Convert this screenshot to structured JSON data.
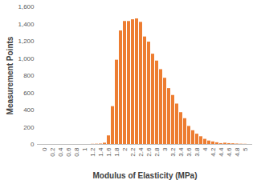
{
  "chart_data": {
    "type": "bar",
    "x_label": "Modulus of Elasticity (MPa)",
    "y_label": "Measurement Points",
    "categories": [
      "0",
      null,
      "0.2",
      null,
      "0.4",
      null,
      "0.6",
      null,
      "0.8",
      null,
      "1",
      null,
      "1.2",
      null,
      "1.4",
      null,
      "1.6",
      null,
      "1.8",
      null,
      "2",
      null,
      "2.2",
      null,
      "2.4",
      null,
      "2.6",
      null,
      "2.8",
      null,
      "3",
      null,
      "3.2",
      null,
      "3.4",
      null,
      "3.6",
      null,
      "3.8",
      null,
      "4",
      null,
      "4.2",
      null,
      "4.4",
      null,
      "4.6",
      null,
      "4.8",
      null,
      "5"
    ],
    "values": [
      0,
      0,
      0,
      0,
      0,
      0,
      0,
      0,
      0,
      0,
      0,
      0,
      2,
      3,
      5,
      15,
      100,
      440,
      980,
      1320,
      1430,
      1430,
      1450,
      1460,
      1420,
      1250,
      1190,
      1050,
      970,
      870,
      770,
      650,
      570,
      470,
      370,
      300,
      210,
      160,
      120,
      90,
      60,
      40,
      30,
      20,
      10,
      15,
      10,
      8,
      5,
      3,
      2
    ],
    "color": "#ed7d31",
    "ylim": [
      0,
      1600
    ],
    "yticks": [
      0,
      200,
      400,
      600,
      800,
      {
        "value": 1000,
        "label": "1,000"
      },
      {
        "value": 1200,
        "label": "1,200"
      },
      {
        "value": 1400,
        "label": "1,400"
      },
      {
        "value": 1600,
        "label": "1,600"
      }
    ],
    "grid": false
  }
}
